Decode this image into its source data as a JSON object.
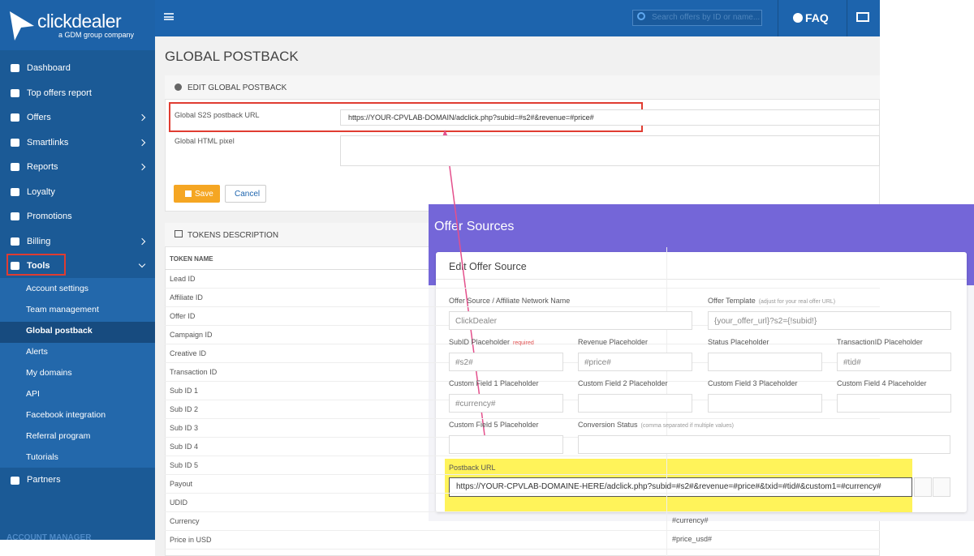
{
  "logo": {
    "name": "clickdealer",
    "tagline": "a GDM group company"
  },
  "topbar": {
    "search_placeholder": "Search offers by ID or name...",
    "faq": "FAQ"
  },
  "sidebar": {
    "menu": [
      "Dashboard",
      "Top offers report",
      "Offers",
      "Smartlinks",
      "Reports",
      "Loyalty",
      "Promotions",
      "Billing",
      "Tools"
    ],
    "submenu": [
      "Account settings",
      "Team management",
      "Global postback",
      "Alerts",
      "My domains",
      "API",
      "Facebook integration",
      "Referral program",
      "Tutorials"
    ],
    "after": [
      "Partners"
    ],
    "section": "ACCOUNT MANAGER"
  },
  "page": {
    "title": "GLOBAL POSTBACK",
    "edit_panel": {
      "title": "EDIT GLOBAL POSTBACK",
      "fields": [
        {
          "label": "Global S2S postback URL",
          "value": "https://YOUR-CPVLAB-DOMAIN/adclick.php?subid=#s2#&revenue=#price#"
        },
        {
          "label": "Global HTML pixel"
        }
      ],
      "save": "Save",
      "cancel": "Cancel"
    },
    "tokens_panel": {
      "title": "TOKENS DESCRIPTION",
      "header": "TOKEN NAME",
      "rows": [
        {
          "name": "Lead ID"
        },
        {
          "name": "Affiliate ID"
        },
        {
          "name": "Offer ID"
        },
        {
          "name": "Campaign ID"
        },
        {
          "name": "Creative ID"
        },
        {
          "name": "Transaction ID"
        },
        {
          "name": "Sub ID 1"
        },
        {
          "name": "Sub ID 2"
        },
        {
          "name": "Sub ID 3"
        },
        {
          "name": "Sub ID 4"
        },
        {
          "name": "Sub ID 5"
        },
        {
          "name": "Payout"
        },
        {
          "name": "UDID"
        },
        {
          "name": "Currency",
          "token": "#currency#"
        },
        {
          "name": "Price in USD",
          "token": "#price_usd#"
        }
      ]
    }
  },
  "overlay": {
    "title": "Offer Sources",
    "card_title": "Edit Offer Source",
    "fields": [
      {
        "label": "Offer Source / Affiliate Network Name",
        "value": "ClickDealer"
      },
      {
        "label": "Offer Template",
        "hint": "(adjust for your real offer URL)",
        "value": "{your_offer_url}?s2={!subid!}"
      },
      {
        "label": "SubID Placeholder",
        "hint": "required",
        "value": "#s2#"
      },
      {
        "label": "Revenue Placeholder",
        "value": "#price#"
      },
      {
        "label": "Status Placeholder"
      },
      {
        "label": "TransactionID Placeholder",
        "value": "#tid#"
      },
      {
        "label": "Custom Field 1 Placeholder",
        "value": "#currency#"
      },
      {
        "label": "Custom Field 2 Placeholder"
      },
      {
        "label": "Custom Field 3 Placeholder"
      },
      {
        "label": "Custom Field 4 Placeholder"
      },
      {
        "label": "Custom Field 5 Placeholder"
      },
      {
        "label": "Conversion Status",
        "hint": "(comma separated if multiple values)"
      }
    ],
    "postback": {
      "label": "Postback URL",
      "value": "https://YOUR-CPVLAB-DOMAINE-HERE/adclick.php?subid=#s2#&revenue=#price#&txid=#tid#&custom1=#currency#"
    }
  }
}
